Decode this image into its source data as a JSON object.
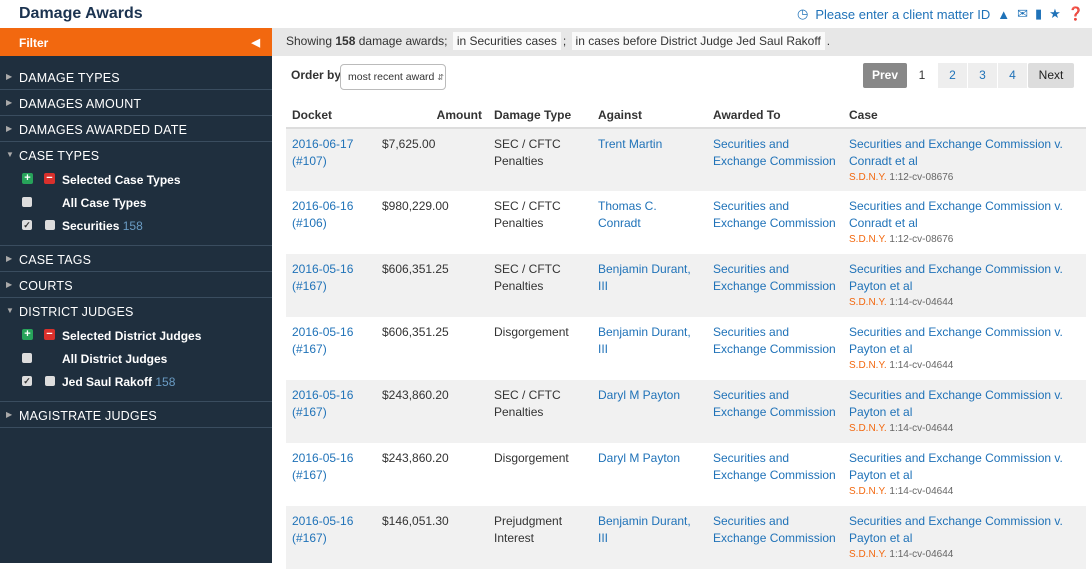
{
  "header": {
    "title": "Damage Awards",
    "client_matter": "Please enter a client matter ID"
  },
  "sidebar": {
    "filter_label": "Filter",
    "sections": {
      "damage_types": "DAMAGE TYPES",
      "damages_amount": "DAMAGES AMOUNT",
      "damages_date": "DAMAGES AWARDED DATE",
      "case_types": "CASE TYPES",
      "case_tags": "CASE TAGS",
      "courts": "COURTS",
      "district_judges": "DISTRICT JUDGES",
      "magistrate_judges": "MAGISTRATE JUDGES"
    },
    "case_types": {
      "selected": "Selected Case Types",
      "all": "All Case Types",
      "item": "Securities",
      "count": "158"
    },
    "district_judges": {
      "selected": "Selected District Judges",
      "all": "All District Judges",
      "item": "Jed Saul Rakoff",
      "count": "158"
    }
  },
  "summary": {
    "prefix": "Showing",
    "count": "158",
    "suffix": "damage awards;",
    "chip1": "in Securities cases",
    "sep": ";",
    "chip2": "in cases before District Judge Jed Saul Rakoff",
    "end": "."
  },
  "order": {
    "label": "Order by",
    "value": "most recent award"
  },
  "pager": {
    "prev": "Prev",
    "pages": [
      "1",
      "2",
      "3",
      "4"
    ],
    "current": "1",
    "next": "Next"
  },
  "table": {
    "headers": [
      "Docket",
      "Amount",
      "Damage Type",
      "Against",
      "Awarded To",
      "Case"
    ],
    "rows": [
      {
        "date": "2016-06-17",
        "entry": "(#107)",
        "amount": "$7,625.00",
        "type": "SEC / CFTC Penalties",
        "against": "Trent Martin",
        "to": "Securities and Exchange Commission",
        "case": "Securities and Exchange Commission v. Conradt et al",
        "court": "S.D.N.Y.",
        "docket": "1:12-cv-08676"
      },
      {
        "date": "2016-06-16",
        "entry": "(#106)",
        "amount": "$980,229.00",
        "type": "SEC / CFTC Penalties",
        "against": "Thomas C. Conradt",
        "to": "Securities and Exchange Commission",
        "case": "Securities and Exchange Commission v. Conradt et al",
        "court": "S.D.N.Y.",
        "docket": "1:12-cv-08676"
      },
      {
        "date": "2016-05-16",
        "entry": "(#167)",
        "amount": "$606,351.25",
        "type": "SEC / CFTC Penalties",
        "against": "Benjamin Durant, III",
        "to": "Securities and Exchange Commission",
        "case": "Securities and Exchange Commission v. Payton et al",
        "court": "S.D.N.Y.",
        "docket": "1:14-cv-04644"
      },
      {
        "date": "2016-05-16",
        "entry": "(#167)",
        "amount": "$606,351.25",
        "type": "Disgorgement",
        "against": "Benjamin Durant, III",
        "to": "Securities and Exchange Commission",
        "case": "Securities and Exchange Commission v. Payton et al",
        "court": "S.D.N.Y.",
        "docket": "1:14-cv-04644"
      },
      {
        "date": "2016-05-16",
        "entry": "(#167)",
        "amount": "$243,860.20",
        "type": "SEC / CFTC Penalties",
        "against": "Daryl M Payton",
        "to": "Securities and Exchange Commission",
        "case": "Securities and Exchange Commission v. Payton et al",
        "court": "S.D.N.Y.",
        "docket": "1:14-cv-04644"
      },
      {
        "date": "2016-05-16",
        "entry": "(#167)",
        "amount": "$243,860.20",
        "type": "Disgorgement",
        "against": "Daryl M Payton",
        "to": "Securities and Exchange Commission",
        "case": "Securities and Exchange Commission v. Payton et al",
        "court": "S.D.N.Y.",
        "docket": "1:14-cv-04644"
      },
      {
        "date": "2016-05-16",
        "entry": "(#167)",
        "amount": "$146,051.30",
        "type": "Prejudgment Interest",
        "against": "Benjamin Durant, III",
        "to": "Securities and Exchange Commission",
        "case": "Securities and Exchange Commission v. Payton et al",
        "court": "S.D.N.Y.",
        "docket": "1:14-cv-04644"
      }
    ]
  },
  "colors": {
    "accent": "#f2680f",
    "sidebar": "#1f2f3e",
    "link": "#1f72b8"
  }
}
